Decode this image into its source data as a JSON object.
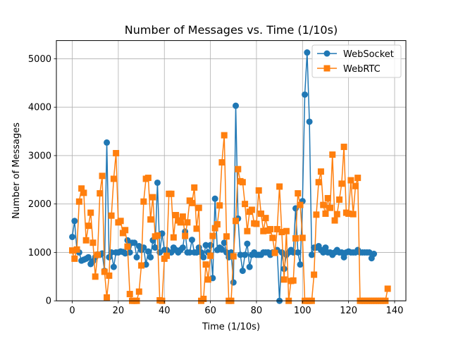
{
  "chart_data": {
    "type": "line",
    "title": "Number of Messages vs. Time (1/10s)",
    "xlabel": "Time (1/10s)",
    "ylabel": "Number of Messages",
    "xlim": [
      -6.9,
      144.9
    ],
    "ylim": [
      0,
      5376
    ],
    "xticks": [
      0,
      20,
      40,
      60,
      80,
      100,
      120,
      140
    ],
    "yticks": [
      0,
      1000,
      2000,
      3000,
      4000,
      5000
    ],
    "grid": true,
    "legend_position": "upper right",
    "series": [
      {
        "name": "WebSocket",
        "color": "#1f77b4",
        "marker": "circle",
        "values": [
          1320,
          1650,
          1050,
          1000,
          830,
          850,
          870,
          900,
          760,
          820,
          900,
          960,
          950,
          980,
          620,
          3270,
          900,
          1000,
          700,
          1000,
          1000,
          1020,
          1010,
          980,
          1250,
          1000,
          1200,
          1200,
          900,
          1130,
          1050,
          1100,
          750,
          1020,
          900,
          1250,
          1100,
          2440,
          1000,
          1390,
          1050,
          1050,
          1000,
          1000,
          1100,
          1050,
          1000,
          1050,
          1100,
          1430,
          1000,
          1000,
          1260,
          1000,
          1000,
          1100,
          1000,
          900,
          1150,
          1000,
          1150,
          470,
          2110,
          1050,
          1100,
          1060,
          1200,
          1000,
          900,
          1000,
          380,
          4030,
          1700,
          950,
          620,
          950,
          1180,
          700,
          950,
          1000,
          950,
          950,
          950,
          1000,
          1000,
          1000,
          950,
          1000,
          1000,
          1050,
          0,
          1000,
          660,
          950,
          1000,
          1050,
          1000,
          1910,
          1000,
          750,
          2060,
          4260,
          5130,
          3700,
          950,
          1100,
          1100,
          1130,
          1050,
          1000,
          1100,
          1000,
          1000,
          950,
          1000,
          1050,
          1000,
          1000,
          900,
          1000,
          1020,
          1000,
          1000,
          1000,
          1050,
          1000,
          1000,
          1000,
          1000,
          1000,
          880,
          970
        ]
      },
      {
        "name": "WebRTC",
        "color": "#ff7f0e",
        "marker": "square",
        "values": [
          1040,
          870,
          1060,
          2050,
          2320,
          2230,
          1250,
          1550,
          1820,
          1200,
          500,
          950,
          2220,
          2580,
          600,
          70,
          520,
          1760,
          2520,
          3050,
          1620,
          1650,
          1400,
          1460,
          1120,
          140,
          0,
          0,
          0,
          190,
          730,
          2050,
          2520,
          2540,
          1680,
          2140,
          1330,
          1350,
          10,
          0,
          870,
          930,
          2210,
          2210,
          1310,
          1770,
          1660,
          1620,
          1740,
          1340,
          1620,
          2070,
          2020,
          2340,
          1490,
          1920,
          0,
          40,
          750,
          440,
          930,
          1340,
          1500,
          1580,
          1970,
          2860,
          3420,
          1330,
          0,
          0,
          920,
          1650,
          2720,
          2470,
          2450,
          2000,
          1440,
          1840,
          1880,
          1600,
          1590,
          2280,
          1800,
          1440,
          1710,
          1450,
          1480,
          1300,
          990,
          1480,
          2360,
          1420,
          440,
          1440,
          0,
          410,
          420,
          1290,
          2220,
          1980,
          1300,
          0,
          0,
          0,
          0,
          540,
          1780,
          2450,
          2670,
          1980,
          1800,
          2120,
          1920,
          3020,
          1660,
          1790,
          2090,
          2420,
          3180,
          1820,
          1800,
          2490,
          1790,
          2370,
          2540,
          0,
          0,
          0,
          0,
          0,
          0,
          0,
          0,
          0,
          0,
          0,
          0,
          250
        ]
      }
    ]
  }
}
